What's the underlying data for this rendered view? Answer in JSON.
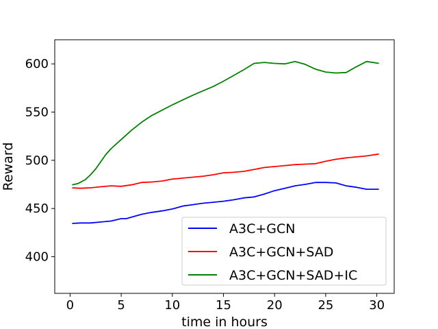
{
  "chart_data": {
    "type": "line",
    "xlabel": "time in hours",
    "ylabel": "Reward",
    "xlim": [
      -1.5,
      31.7
    ],
    "ylim": [
      362,
      625
    ],
    "xticks": [
      0,
      5,
      10,
      15,
      20,
      25,
      30
    ],
    "yticks": [
      400,
      450,
      500,
      550,
      600
    ],
    "legend_position": "lower-right",
    "grid": false,
    "series": [
      {
        "name": "A3C+GCN",
        "color": "#0000ff",
        "x": [
          0.2,
          1,
          2,
          3,
          4,
          5,
          5.5,
          6,
          7,
          8,
          9,
          10,
          11,
          12,
          13,
          14,
          15,
          16,
          17,
          18,
          19,
          20,
          21,
          22,
          23,
          24,
          25,
          26,
          27,
          28,
          29,
          30.2
        ],
        "y": [
          434.5,
          435,
          435,
          436,
          437,
          439.5,
          439.5,
          441,
          444,
          446,
          447.5,
          449.5,
          452.5,
          454,
          455.5,
          456.5,
          457.5,
          459,
          461,
          462,
          465,
          468.5,
          471,
          473.5,
          475,
          477,
          477,
          476.5,
          473.5,
          472,
          470,
          470
        ]
      },
      {
        "name": "A3C+GCN+SAD",
        "color": "#ff0000",
        "x": [
          0.2,
          1,
          2,
          3,
          4,
          5,
          6,
          7,
          8,
          9,
          10,
          11,
          12,
          13,
          14,
          15,
          16,
          17,
          18,
          19,
          20,
          21,
          22,
          23,
          24,
          25,
          26,
          27,
          28,
          29,
          30.2
        ],
        "y": [
          471.5,
          471,
          471.5,
          472.5,
          473.5,
          473,
          474.5,
          477,
          477.5,
          478.5,
          480.5,
          481.5,
          482.5,
          483.5,
          485,
          487,
          487.5,
          488.5,
          490.5,
          492.5,
          493.5,
          494.5,
          495.5,
          496,
          496.5,
          499,
          501,
          502.5,
          503.5,
          504.5,
          506.5
        ]
      },
      {
        "name": "A3C+GCN+SAD+IC",
        "color": "#008000",
        "x": [
          0.2,
          0.8,
          1.5,
          2,
          2.5,
          3,
          3.5,
          4,
          5,
          6,
          7,
          8,
          9,
          10,
          11,
          12,
          13,
          14,
          15,
          16,
          17,
          18,
          19,
          20,
          21,
          22,
          23,
          24,
          25,
          26,
          27,
          28,
          29,
          30.2
        ],
        "y": [
          474.5,
          476,
          480,
          485,
          491,
          498.5,
          506,
          512,
          521.5,
          531,
          539.5,
          546.5,
          552,
          557.5,
          562.5,
          567.5,
          572,
          576.5,
          582,
          588,
          594,
          600.5,
          601.5,
          600.5,
          600,
          602.5,
          599.5,
          594.5,
          591.5,
          590.5,
          591,
          597,
          602.5,
          600.5
        ]
      }
    ]
  }
}
